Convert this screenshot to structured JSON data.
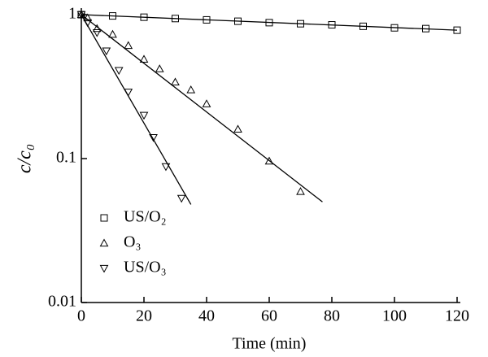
{
  "chart_data": {
    "type": "scatter",
    "log_y": true,
    "x_label": "Time (min)",
    "y_label": "c/c₀",
    "xlim": [
      0,
      120
    ],
    "xticks": [
      0,
      20,
      40,
      60,
      80,
      100,
      120
    ],
    "ylim": [
      0.01,
      1.1
    ],
    "yticks": [
      0.01,
      0.1,
      1
    ],
    "color": "#000000",
    "series": [
      {
        "name": "US/O₂",
        "marker": "square",
        "x": [
          0,
          10,
          20,
          30,
          40,
          50,
          60,
          70,
          80,
          90,
          100,
          110,
          120
        ],
        "values": [
          1.0,
          0.98,
          0.96,
          0.94,
          0.92,
          0.9,
          0.88,
          0.865,
          0.85,
          0.83,
          0.81,
          0.8,
          0.78
        ],
        "fit_x": [
          0,
          120
        ],
        "fit_values": [
          1.0,
          0.78
        ]
      },
      {
        "name": "O₃",
        "marker": "triangle-up",
        "x": [
          0,
          2,
          5,
          10,
          15,
          20,
          25,
          30,
          35,
          40,
          50,
          60,
          70
        ],
        "values": [
          1.0,
          0.95,
          0.8,
          0.73,
          0.61,
          0.49,
          0.42,
          0.34,
          0.3,
          0.24,
          0.16,
          0.096,
          0.059
        ],
        "fit_x": [
          0,
          77
        ],
        "fit_values": [
          1.0,
          0.05
        ]
      },
      {
        "name": "US/O₃",
        "marker": "triangle-down",
        "x": [
          0,
          2,
          5,
          8,
          12,
          15,
          20,
          23,
          27,
          32
        ],
        "values": [
          1.0,
          0.88,
          0.75,
          0.56,
          0.41,
          0.29,
          0.2,
          0.14,
          0.088,
          0.053
        ],
        "fit_x": [
          0,
          35
        ],
        "fit_values": [
          1.0,
          0.048
        ]
      }
    ]
  }
}
